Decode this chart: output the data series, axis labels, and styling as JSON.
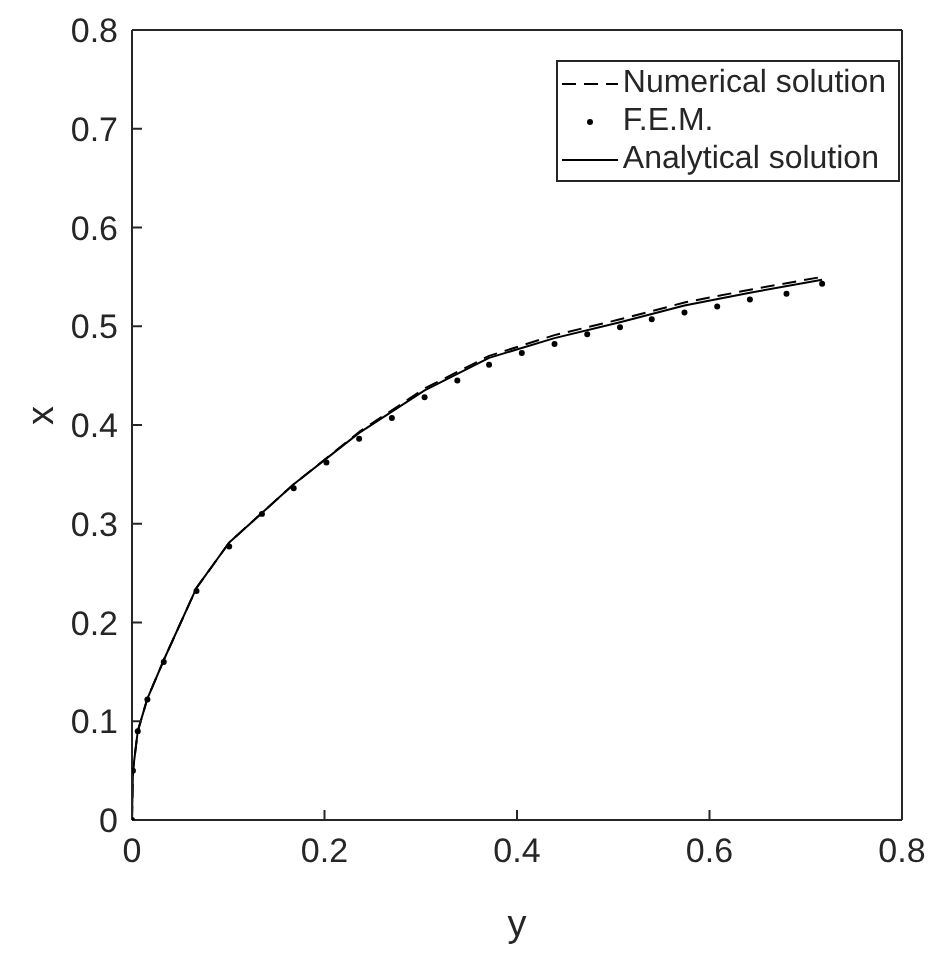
{
  "chart_data": {
    "type": "line",
    "xlabel": "y",
    "ylabel": "x",
    "xlim": [
      0,
      0.8
    ],
    "xticks": [
      0,
      0.2,
      0.4,
      0.6,
      0.8
    ],
    "ylim": [
      0,
      0.8
    ],
    "yticks": [
      0,
      0.1,
      0.2,
      0.3,
      0.4,
      0.5,
      0.6,
      0.7,
      0.8
    ],
    "grid": false,
    "legend": "top right",
    "series": [
      {
        "name": "Numerical solution",
        "color": "#000000",
        "line_style": "dashed",
        "marker": "none",
        "x": [
          0,
          0.001,
          0.006,
          0.016,
          0.033,
          0.067,
          0.101,
          0.168,
          0.236,
          0.304,
          0.371,
          0.439,
          0.507,
          0.574,
          0.642,
          0.717
        ],
        "values": [
          0,
          0.05,
          0.09,
          0.123,
          0.162,
          0.235,
          0.281,
          0.34,
          0.393,
          0.437,
          0.47,
          0.491,
          0.507,
          0.524,
          0.537,
          0.55
        ]
      },
      {
        "name": "F.E.M.",
        "type": "scatter",
        "color": "#000000",
        "marker": "circle",
        "x": [
          0,
          0.001,
          0.006,
          0.016,
          0.033,
          0.067,
          0.101,
          0.135,
          0.168,
          0.202,
          0.236,
          0.27,
          0.304,
          0.338,
          0.371,
          0.405,
          0.439,
          0.473,
          0.507,
          0.54,
          0.574,
          0.608,
          0.642,
          0.68,
          0.717
        ],
        "values": [
          0,
          0.05,
          0.09,
          0.122,
          0.16,
          0.232,
          0.277,
          0.31,
          0.336,
          0.362,
          0.386,
          0.407,
          0.428,
          0.445,
          0.461,
          0.473,
          0.482,
          0.492,
          0.499,
          0.507,
          0.514,
          0.52,
          0.527,
          0.533,
          0.543
        ]
      },
      {
        "name": "Analytical solution",
        "color": "#000000",
        "line_style": "solid",
        "marker": "none",
        "x": [
          0,
          0.001,
          0.006,
          0.016,
          0.033,
          0.067,
          0.101,
          0.168,
          0.236,
          0.304,
          0.371,
          0.439,
          0.507,
          0.574,
          0.642,
          0.717
        ],
        "values": [
          0,
          0.05,
          0.09,
          0.123,
          0.162,
          0.235,
          0.281,
          0.34,
          0.392,
          0.435,
          0.468,
          0.488,
          0.504,
          0.521,
          0.534,
          0.547
        ]
      }
    ]
  }
}
